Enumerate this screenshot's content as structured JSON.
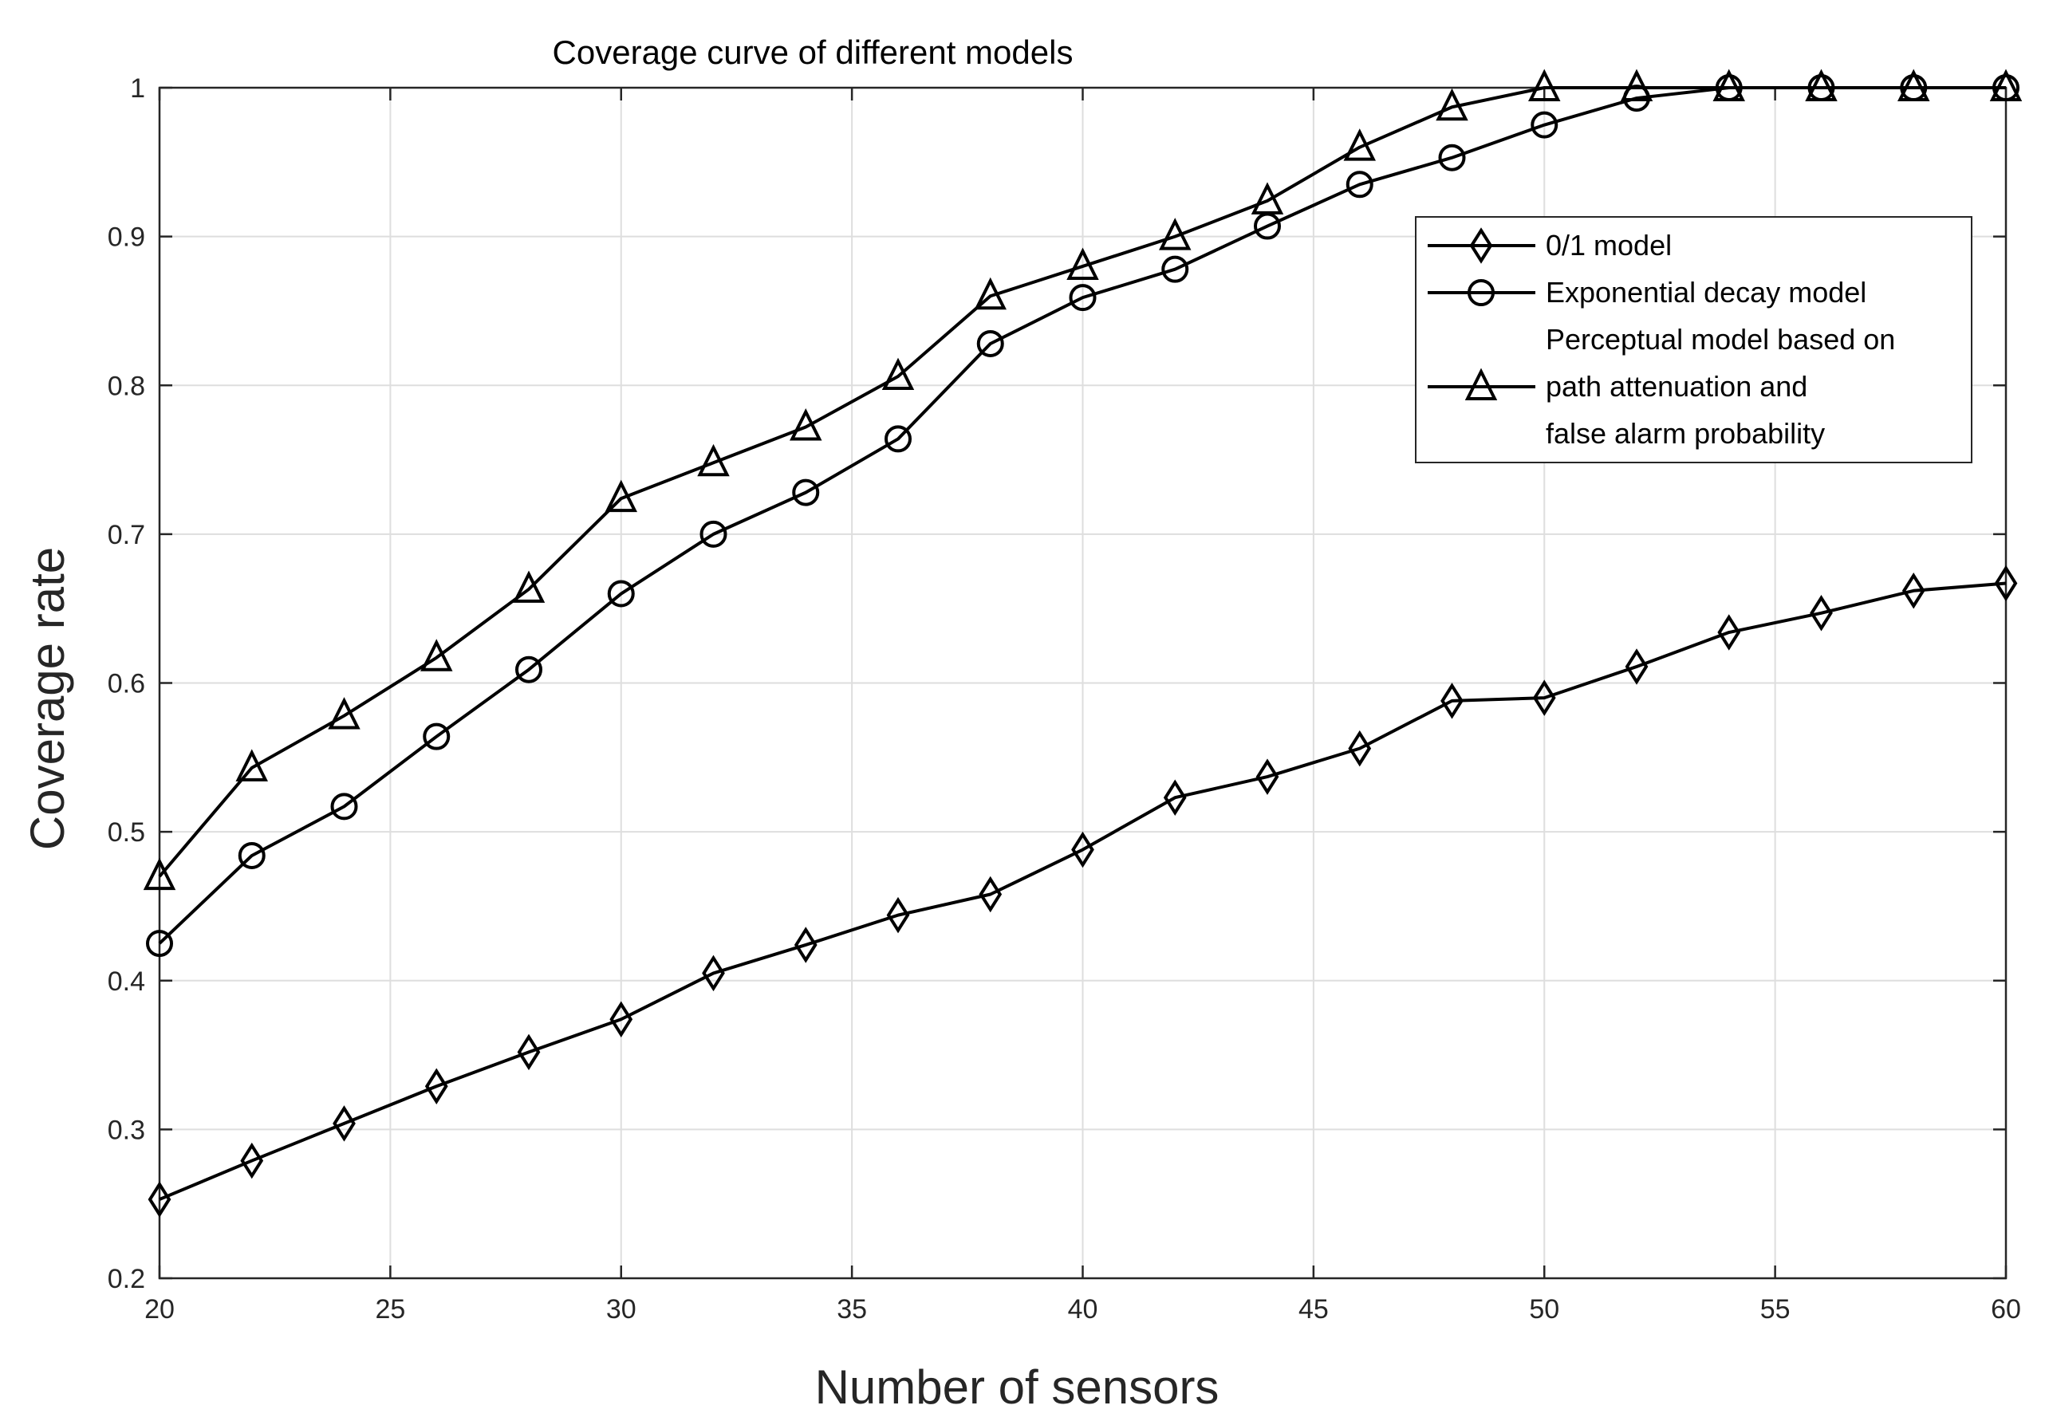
{
  "chart_data": {
    "type": "line",
    "title": "Coverage curve of different models",
    "xlabel": "Number of sensors",
    "ylabel": "Coverage rate",
    "xlim": [
      20,
      60
    ],
    "ylim": [
      0.2,
      1
    ],
    "xticks": [
      20,
      25,
      30,
      35,
      40,
      45,
      50,
      55,
      60
    ],
    "yticks": [
      0.2,
      0.3,
      0.4,
      0.5,
      0.6,
      0.7,
      0.8,
      0.9,
      1
    ],
    "xtick_labels": [
      "20",
      "25",
      "30",
      "35",
      "40",
      "45",
      "50",
      "55",
      "60"
    ],
    "ytick_labels": [
      "0.2",
      "0.3",
      "0.4",
      "0.5",
      "0.6",
      "0.7",
      "0.8",
      "0.9",
      "1"
    ],
    "grid": true,
    "legend_position": "top-right",
    "x": [
      20,
      22,
      24,
      26,
      28,
      30,
      32,
      34,
      36,
      38,
      40,
      42,
      44,
      46,
      48,
      50,
      52,
      54,
      56,
      58,
      60
    ],
    "series": [
      {
        "name": "0/1 model",
        "legend_lines": [
          "0/1 model"
        ],
        "marker": "diamond",
        "color": "#000000",
        "values": [
          0.253,
          0.279,
          0.304,
          0.329,
          0.352,
          0.374,
          0.405,
          0.424,
          0.444,
          0.458,
          0.488,
          0.523,
          0.537,
          0.556,
          0.588,
          0.59,
          0.611,
          0.634,
          0.647,
          0.662,
          0.667
        ]
      },
      {
        "name": "Exponential decay model",
        "legend_lines": [
          "Exponential decay model"
        ],
        "marker": "circle",
        "color": "#000000",
        "values": [
          0.425,
          0.484,
          0.517,
          0.564,
          0.609,
          0.66,
          0.7,
          0.728,
          0.764,
          0.828,
          0.859,
          0.878,
          0.907,
          0.935,
          0.953,
          0.975,
          0.993,
          1.0,
          1.0,
          1.0,
          1.0
        ]
      },
      {
        "name": "Perceptual model based on path attenuation and false alarm probability",
        "legend_lines": [
          "Perceptual model based on",
          "path attenuation and",
          "false alarm probability"
        ],
        "marker": "triangle",
        "color": "#000000",
        "values": [
          0.47,
          0.543,
          0.578,
          0.617,
          0.663,
          0.724,
          0.748,
          0.772,
          0.806,
          0.86,
          0.88,
          0.9,
          0.924,
          0.96,
          0.987,
          1.0,
          1.0,
          1.0,
          1.0,
          1.0,
          1.0
        ]
      }
    ]
  }
}
